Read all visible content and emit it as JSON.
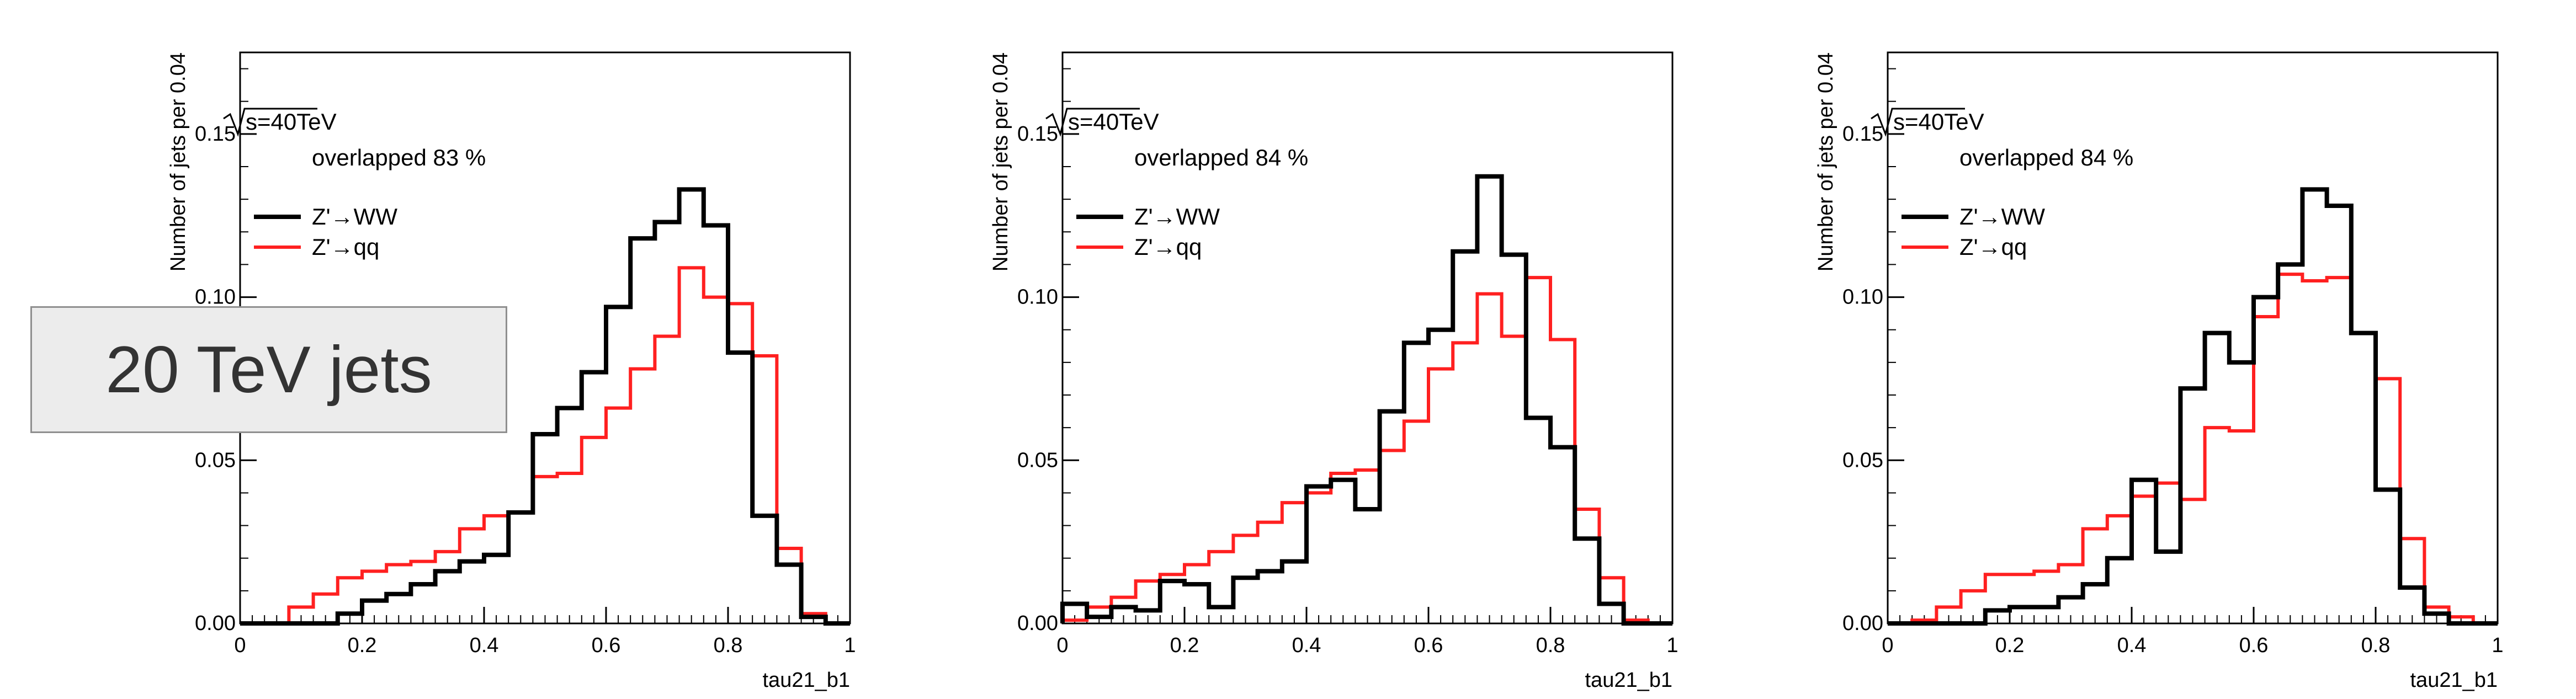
{
  "chart_data": [
    {
      "type": "line",
      "energy_label": "s=40TeV",
      "overlap_label": "overlapped 83 %",
      "xlabel": "tau21_b1",
      "ylabel": "Number of jets per 0.04",
      "xlim": [
        0,
        1
      ],
      "ylim": [
        0,
        0.175
      ],
      "x_ticks": [
        {
          "v": 0,
          "t": "0"
        },
        {
          "v": 0.2,
          "t": "0.2"
        },
        {
          "v": 0.4,
          "t": "0.4"
        },
        {
          "v": 0.6,
          "t": "0.6"
        },
        {
          "v": 0.8,
          "t": "0.8"
        },
        {
          "v": 1,
          "t": "1"
        }
      ],
      "y_ticks": [
        {
          "v": 0,
          "t": "0.00"
        },
        {
          "v": 0.05,
          "t": "0.05"
        },
        {
          "v": 0.1,
          "t": "0.10"
        },
        {
          "v": 0.15,
          "t": "0.15"
        }
      ],
      "bin_edges": [
        0,
        0.04,
        0.08,
        0.12,
        0.16,
        0.2,
        0.24,
        0.28,
        0.32,
        0.36,
        0.4,
        0.44,
        0.48,
        0.52,
        0.56,
        0.6,
        0.64,
        0.68,
        0.72,
        0.76,
        0.8,
        0.84,
        0.88,
        0.92,
        0.96,
        1.0
      ],
      "series": [
        {
          "name": "Z'→WW",
          "color": "#000000",
          "values": [
            0,
            0,
            0,
            0,
            0.003,
            0.007,
            0.009,
            0.012,
            0.016,
            0.019,
            0.021,
            0.034,
            0.058,
            0.066,
            0.077,
            0.097,
            0.118,
            0.123,
            0.133,
            0.122,
            0.083,
            0.033,
            0.018,
            0.002,
            0
          ]
        },
        {
          "name": "Z'→qq",
          "color": "#ff2020",
          "values": [
            0,
            0,
            0.005,
            0.009,
            0.014,
            0.016,
            0.018,
            0.019,
            0.022,
            0.029,
            0.033,
            0.034,
            0.045,
            0.046,
            0.057,
            0.066,
            0.078,
            0.088,
            0.109,
            0.1,
            0.098,
            0.082,
            0.023,
            0.003,
            0
          ]
        }
      ]
    },
    {
      "type": "line",
      "energy_label": "s=40TeV",
      "overlap_label": "overlapped 84 %",
      "xlabel": "tau21_b1",
      "ylabel": "Number of jets per 0.04",
      "xlim": [
        0,
        1
      ],
      "ylim": [
        0,
        0.175
      ],
      "x_ticks": [
        {
          "v": 0,
          "t": "0"
        },
        {
          "v": 0.2,
          "t": "0.2"
        },
        {
          "v": 0.4,
          "t": "0.4"
        },
        {
          "v": 0.6,
          "t": "0.6"
        },
        {
          "v": 0.8,
          "t": "0.8"
        },
        {
          "v": 1,
          "t": "1"
        }
      ],
      "y_ticks": [
        {
          "v": 0,
          "t": "0.00"
        },
        {
          "v": 0.05,
          "t": "0.05"
        },
        {
          "v": 0.1,
          "t": "0.10"
        },
        {
          "v": 0.15,
          "t": "0.15"
        }
      ],
      "bin_edges": [
        0,
        0.04,
        0.08,
        0.12,
        0.16,
        0.2,
        0.24,
        0.28,
        0.32,
        0.36,
        0.4,
        0.44,
        0.48,
        0.52,
        0.56,
        0.6,
        0.64,
        0.68,
        0.72,
        0.76,
        0.8,
        0.84,
        0.88,
        0.92,
        0.96,
        1.0
      ],
      "series": [
        {
          "name": "Z'→WW",
          "color": "#000000",
          "values": [
            0.006,
            0.002,
            0.005,
            0.004,
            0.013,
            0.012,
            0.005,
            0.014,
            0.016,
            0.019,
            0.042,
            0.044,
            0.035,
            0.065,
            0.086,
            0.09,
            0.114,
            0.137,
            0.113,
            0.063,
            0.054,
            0.026,
            0.006,
            0,
            0
          ]
        },
        {
          "name": "Z'→qq",
          "color": "#ff2020",
          "values": [
            0.001,
            0.005,
            0.008,
            0.013,
            0.015,
            0.018,
            0.022,
            0.027,
            0.031,
            0.037,
            0.04,
            0.046,
            0.047,
            0.053,
            0.062,
            0.078,
            0.086,
            0.101,
            0.088,
            0.106,
            0.087,
            0.035,
            0.014,
            0.001,
            0
          ]
        }
      ]
    },
    {
      "type": "line",
      "energy_label": "s=40TeV",
      "overlap_label": "overlapped 84 %",
      "xlabel": "tau21_b1",
      "ylabel": "Number of jets per 0.04",
      "xlim": [
        0,
        1
      ],
      "ylim": [
        0,
        0.175
      ],
      "x_ticks": [
        {
          "v": 0,
          "t": "0"
        },
        {
          "v": 0.2,
          "t": "0.2"
        },
        {
          "v": 0.4,
          "t": "0.4"
        },
        {
          "v": 0.6,
          "t": "0.6"
        },
        {
          "v": 0.8,
          "t": "0.8"
        },
        {
          "v": 1,
          "t": "1"
        }
      ],
      "y_ticks": [
        {
          "v": 0,
          "t": "0.00"
        },
        {
          "v": 0.05,
          "t": "0.05"
        },
        {
          "v": 0.1,
          "t": "0.10"
        },
        {
          "v": 0.15,
          "t": "0.15"
        }
      ],
      "bin_edges": [
        0,
        0.04,
        0.08,
        0.12,
        0.16,
        0.2,
        0.24,
        0.28,
        0.32,
        0.36,
        0.4,
        0.44,
        0.48,
        0.52,
        0.56,
        0.6,
        0.64,
        0.68,
        0.72,
        0.76,
        0.8,
        0.84,
        0.88,
        0.92,
        0.96,
        1.0
      ],
      "series": [
        {
          "name": "Z'→WW",
          "color": "#000000",
          "values": [
            0,
            0,
            0,
            0,
            0.004,
            0.005,
            0.005,
            0.008,
            0.012,
            0.02,
            0.044,
            0.022,
            0.072,
            0.089,
            0.08,
            0.1,
            0.11,
            0.133,
            0.128,
            0.089,
            0.041,
            0.011,
            0.003,
            0,
            0
          ]
        },
        {
          "name": "Z'→qq",
          "color": "#ff2020",
          "values": [
            0,
            0.001,
            0.005,
            0.01,
            0.015,
            0.015,
            0.016,
            0.018,
            0.029,
            0.033,
            0.039,
            0.043,
            0.038,
            0.06,
            0.059,
            0.094,
            0.107,
            0.105,
            0.106,
            0.089,
            0.075,
            0.026,
            0.005,
            0.002,
            0
          ]
        }
      ]
    }
  ],
  "overlay": {
    "jets_label": "20 TeV jets"
  }
}
